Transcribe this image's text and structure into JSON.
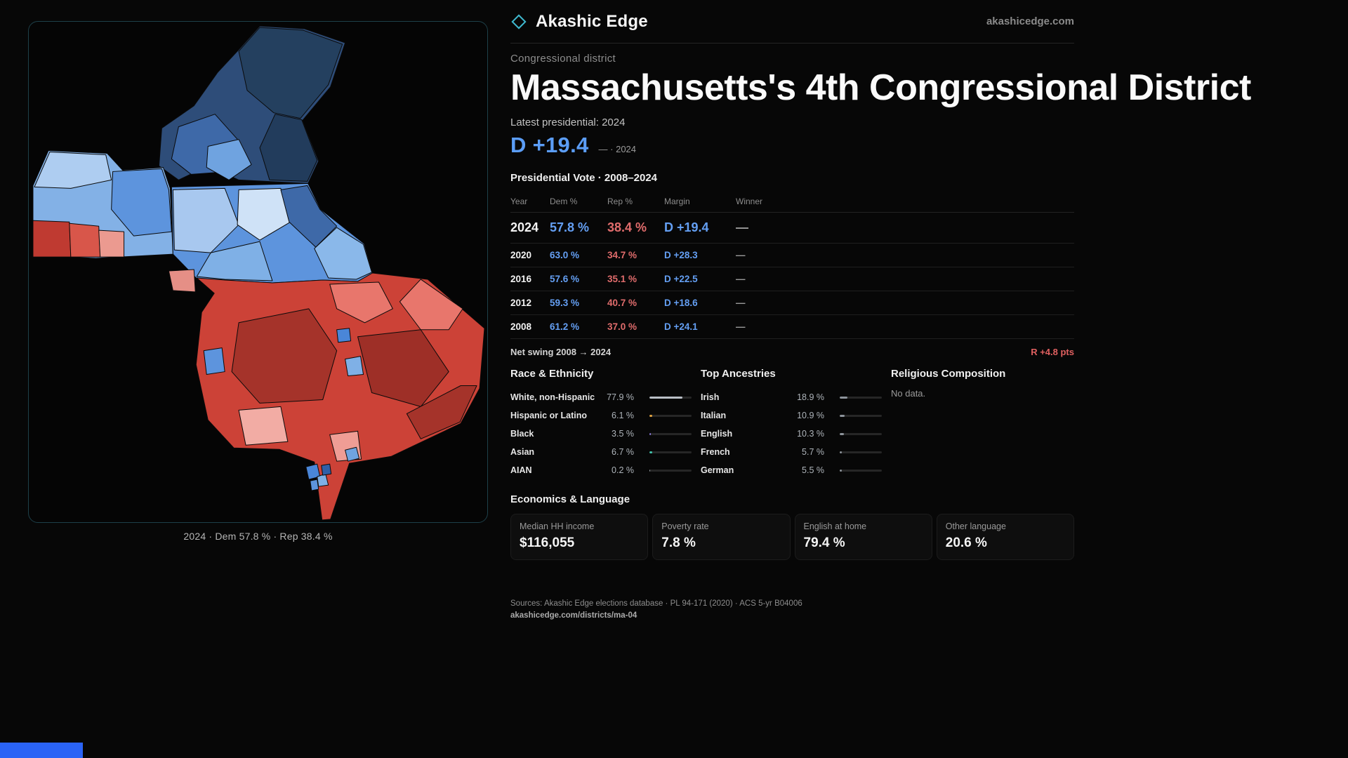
{
  "brand": {
    "name": "Akashic Edge",
    "domain": "akashicedge.com"
  },
  "page": {
    "kicker": "Congressional district",
    "title": "Massachusetts's 4th Congressional District",
    "latest_label": "Latest presidential: 2024",
    "headline_margin": "D +19.4",
    "headline_note": "— · 2024"
  },
  "vote_table": {
    "title": "Presidential Vote · 2008–2024",
    "columns": [
      "Year",
      "Dem %",
      "Rep %",
      "Margin",
      "Winner"
    ],
    "rows": [
      {
        "year": "2024",
        "dem": "57.8 %",
        "rep": "38.4 %",
        "margin": "D +19.4",
        "winner": "—"
      },
      {
        "year": "2020",
        "dem": "63.0 %",
        "rep": "34.7 %",
        "margin": "D +28.3",
        "winner": "—"
      },
      {
        "year": "2016",
        "dem": "57.6 %",
        "rep": "35.1 %",
        "margin": "D +22.5",
        "winner": "—"
      },
      {
        "year": "2012",
        "dem": "59.3 %",
        "rep": "40.7 %",
        "margin": "D +18.6",
        "winner": "—"
      },
      {
        "year": "2008",
        "dem": "61.2 %",
        "rep": "37.0 %",
        "margin": "D +24.1",
        "winner": "—"
      }
    ]
  },
  "net_swing": {
    "label": "Net swing 2008 → 2024",
    "value": "R +4.8 pts"
  },
  "race": {
    "title": "Race & Ethnicity",
    "rows": [
      {
        "label": "White, non-Hispanic",
        "value": "77.9 %",
        "pct": 77.9,
        "color": "#b9bfc6"
      },
      {
        "label": "Hispanic or Latino",
        "value": "6.1 %",
        "pct": 6.1,
        "color": "#e0a23f"
      },
      {
        "label": "Black",
        "value": "3.5 %",
        "pct": 3.5,
        "color": "#8b7ae0"
      },
      {
        "label": "Asian",
        "value": "6.7 %",
        "pct": 6.7,
        "color": "#3fc1a9"
      },
      {
        "label": "AIAN",
        "value": "0.2 %",
        "pct": 0.2,
        "color": "#9aa0a6"
      }
    ]
  },
  "ancestries": {
    "title": "Top Ancestries",
    "rows": [
      {
        "label": "Irish",
        "value": "18.9 %",
        "pct": 18.9,
        "color": "#8d949b"
      },
      {
        "label": "Italian",
        "value": "10.9 %",
        "pct": 10.9,
        "color": "#8d949b"
      },
      {
        "label": "English",
        "value": "10.3 %",
        "pct": 10.3,
        "color": "#8d949b"
      },
      {
        "label": "French",
        "value": "5.7 %",
        "pct": 5.7,
        "color": "#8d949b"
      },
      {
        "label": "German",
        "value": "5.5 %",
        "pct": 5.5,
        "color": "#8d949b"
      }
    ]
  },
  "religion": {
    "title": "Religious Composition",
    "empty": "No data."
  },
  "economics": {
    "title": "Economics & Language",
    "stats": [
      {
        "label": "Median HH income",
        "value": "$116,055"
      },
      {
        "label": "Poverty rate",
        "value": "7.8 %"
      },
      {
        "label": "English at home",
        "value": "79.4 %"
      },
      {
        "label": "Other language",
        "value": "20.6 %"
      }
    ]
  },
  "sources": {
    "line": "Sources: Akashic Edge elections database · PL 94-171 (2020) · ACS 5-yr B04006",
    "link": "akashicedge.com/districts/ma-04"
  },
  "map": {
    "caption": "2024 · Dem 57.8 % · Rep 38.4 %"
  },
  "accent_colors": {
    "dem_blue": "#5b9df6",
    "rep_red": "#e06c6c",
    "panel_border_teal": "#1d4049",
    "bottom_bar_blue": "#2a63f6"
  }
}
